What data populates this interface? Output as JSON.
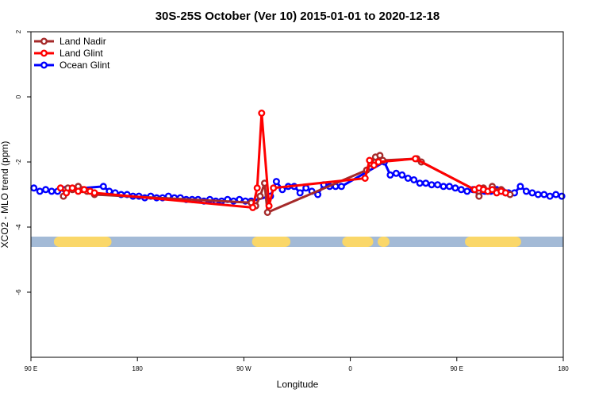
{
  "chart_data": {
    "type": "line",
    "title": "30S-25S October (Ver 10)   2015-01-01 to 2020-12-18",
    "xlabel": "Longitude",
    "ylabel": "XCO2 - MLO trend (ppm)",
    "xlim": [
      90,
      450
    ],
    "ylim": [
      -8,
      2
    ],
    "x_ticks": [
      {
        "value": 90,
        "label": "90 E"
      },
      {
        "value": 162,
        "label": "180"
      },
      {
        "value": 234,
        "label": "90 W"
      },
      {
        "value": 306,
        "label": "0"
      },
      {
        "value": 378,
        "label": "90 E"
      },
      {
        "value": 450,
        "label": "180"
      }
    ],
    "y_ticks": [
      {
        "value": 2,
        "label": "2"
      },
      {
        "value": 0,
        "label": "0"
      },
      {
        "value": -2,
        "label": "-2"
      },
      {
        "value": -4,
        "label": "-4"
      },
      {
        "value": -6,
        "label": "-6"
      }
    ],
    "legend_position": "top-left",
    "grid": false,
    "band": {
      "y": -4.45,
      "ocean_color": "#a3bad6",
      "land_color": "#fad769",
      "land_segments": [
        [
          109,
          141
        ],
        [
          243,
          262
        ],
        [
          304,
          318
        ],
        [
          328,
          329
        ],
        [
          387,
          418
        ]
      ]
    },
    "series": [
      {
        "name": "Land Nadir",
        "color": "#a52a2a",
        "x": [
          112,
          115,
          118,
          122,
          125,
          128,
          133,
          239,
          242,
          245,
          248,
          250,
          317,
          320,
          323,
          326,
          328,
          351,
          354,
          390,
          393,
          396,
          399,
          402,
          405,
          408,
          411,
          414
        ],
        "y": [
          -3.05,
          -2.8,
          -2.85,
          -2.75,
          -2.85,
          -2.9,
          -3.0,
          -3.25,
          -3.35,
          -3.05,
          -2.65,
          -3.55,
          -2.25,
          -2.05,
          -1.85,
          -1.8,
          -1.95,
          -1.9,
          -2.0,
          -2.85,
          -3.05,
          -2.8,
          -2.9,
          -2.75,
          -2.9,
          -2.85,
          -2.95,
          -3.0
        ]
      },
      {
        "name": "Land Glint",
        "color": "#ff0000",
        "x": [
          110,
          114,
          118,
          122,
          126,
          130,
          133,
          240,
          243,
          246,
          251,
          254,
          316,
          319,
          322,
          325,
          350,
          390,
          393,
          396,
          399,
          402,
          405,
          408,
          411
        ],
        "y": [
          -2.8,
          -2.95,
          -2.8,
          -2.9,
          -2.85,
          -2.9,
          -2.95,
          -3.4,
          -2.8,
          -0.5,
          -3.35,
          -2.8,
          -2.5,
          -1.95,
          -2.1,
          -2.0,
          -1.9,
          -2.85,
          -2.8,
          -2.85,
          -2.9,
          -2.85,
          -2.95,
          -2.9,
          -2.95
        ]
      },
      {
        "name": "Ocean Glint",
        "color": "#0000ff",
        "x": [
          92,
          96,
          100,
          104,
          108,
          113,
          139,
          143,
          147,
          151,
          155,
          159,
          163,
          167,
          171,
          175,
          179,
          183,
          187,
          191,
          195,
          199,
          203,
          207,
          211,
          215,
          219,
          223,
          227,
          231,
          235,
          239,
          252,
          256,
          260,
          264,
          268,
          272,
          276,
          280,
          284,
          288,
          292,
          296,
          300,
          329,
          333,
          337,
          341,
          345,
          349,
          353,
          357,
          361,
          365,
          369,
          373,
          377,
          381,
          385,
          389,
          393,
          397,
          401,
          405,
          409,
          413,
          417,
          421,
          425,
          429,
          433,
          437,
          441,
          445,
          449
        ],
        "y": [
          -2.8,
          -2.9,
          -2.85,
          -2.9,
          -2.9,
          -2.85,
          -2.75,
          -2.9,
          -2.95,
          -3.0,
          -3.0,
          -3.05,
          -3.05,
          -3.1,
          -3.05,
          -3.1,
          -3.1,
          -3.05,
          -3.1,
          -3.1,
          -3.15,
          -3.15,
          -3.15,
          -3.2,
          -3.15,
          -3.2,
          -3.2,
          -3.15,
          -3.2,
          -3.15,
          -3.2,
          -3.2,
          -3.05,
          -2.6,
          -2.85,
          -2.75,
          -2.75,
          -2.95,
          -2.8,
          -2.9,
          -3.0,
          -2.7,
          -2.75,
          -2.75,
          -2.75,
          -2.0,
          -2.4,
          -2.35,
          -2.4,
          -2.5,
          -2.55,
          -2.65,
          -2.65,
          -2.7,
          -2.7,
          -2.75,
          -2.75,
          -2.8,
          -2.85,
          -2.9,
          -2.85,
          -2.95,
          -2.9,
          -2.9,
          -2.85,
          -2.9,
          -2.95,
          -2.95,
          -2.75,
          -2.9,
          -2.95,
          -3.0,
          -3.0,
          -3.05,
          -3.0,
          -3.05
        ]
      }
    ]
  }
}
